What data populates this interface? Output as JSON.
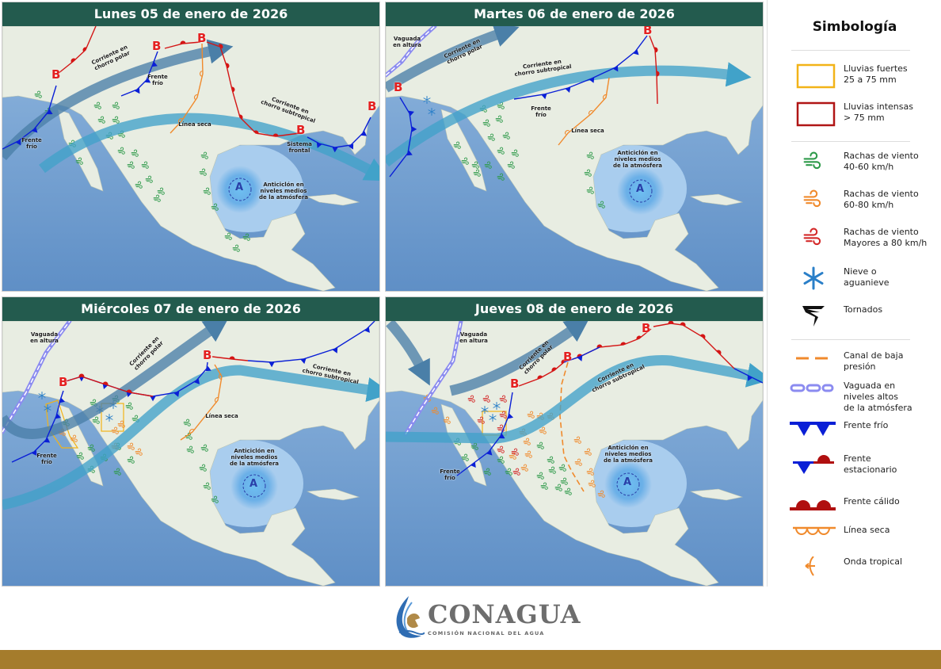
{
  "panels": [
    {
      "title": "Lunes 05 de enero de 2026",
      "labels": [
        "Corriente en\nchorro polar",
        "Frente\nfrío",
        "Frente\nfrío",
        "Línea seca",
        "Corriente en\nchorro subtropical",
        "Sistema\nfrontal",
        "Anticiclón en\nniveles medios\nde la atmósfera"
      ],
      "lows": [
        "B",
        "B",
        "B",
        "B",
        "B"
      ],
      "high": "A"
    },
    {
      "title": "Martes 06 de enero de 2026",
      "labels": [
        "Vaguada\nen altura",
        "Corriente en\nchorro polar",
        "Corriente en\nchorro subtropical",
        "Frente\nfrío",
        "Línea seca",
        "Anticiclón en\nniveles medios\nde la atmósfera"
      ],
      "lows": [
        "B",
        "B"
      ],
      "high": "A"
    },
    {
      "title": "Miércoles 07 de enero de 2026",
      "labels": [
        "Vaguada\nen altura",
        "Corriente en\nchorro polar",
        "Corriente en\nchorro subtropical",
        "Línea seca",
        "Frente\nfrío",
        "Anticiclón en\nniveles medios\nde la atmósfera"
      ],
      "lows": [
        "B",
        "B"
      ],
      "high": "A"
    },
    {
      "title": "Jueves 08 de enero de 2026",
      "labels": [
        "Vaguada\nen altura",
        "Corriente en\nchorro polar",
        "Corriente en\nchorro subtropical",
        "Frente\nfrío",
        "Anticiclón en\nniveles medios\nde la atmósfera"
      ],
      "lows": [
        "B",
        "B",
        "B"
      ],
      "high": "A"
    }
  ],
  "legend": {
    "title": "Simbología",
    "items": [
      {
        "icon": "rain-heavy-box-icon",
        "text": "Lluvias fuertes\n25 a 75 mm",
        "color": "#f2b318"
      },
      {
        "icon": "rain-intense-box-icon",
        "text": "Lluvias intensas\n> 75 mm",
        "color": "#b01515"
      },
      {
        "icon": "wind-gust-icon",
        "text": "Rachas de viento\n40-60 km/h",
        "color": "#2e9a4a"
      },
      {
        "icon": "wind-gust-icon",
        "text": "Rachas de viento\n60-80 km/h",
        "color": "#f08a2c"
      },
      {
        "icon": "wind-gust-icon",
        "text": "Rachas de viento\nMayores a 80 km/h",
        "color": "#d42a2a"
      },
      {
        "icon": "snowflake-icon",
        "text": "Nieve o\naguanieve",
        "color": "#2a7fc8"
      },
      {
        "icon": "tornado-icon",
        "text": "Tornados",
        "color": "#111111"
      },
      {
        "icon": "low-pressure-trough-icon",
        "text": "Canal de baja\npresión",
        "color": "#f08a2c"
      },
      {
        "icon": "upper-trough-icon",
        "text": "Vaguada en\nniveles altos\nde la atmósfera",
        "color": "#8b8bf0"
      },
      {
        "icon": "cold-front-icon",
        "text": "Frente frío",
        "color": "#0a1fd6"
      },
      {
        "icon": "stationary-front-icon",
        "text": "Frente\nestacionario",
        "color": "#0a1fd6"
      },
      {
        "icon": "warm-front-icon",
        "text": "Frente cálido",
        "color": "#b00f0f"
      },
      {
        "icon": "dry-line-icon",
        "text": "Línea seca",
        "color": "#f08a2c"
      },
      {
        "icon": "tropical-wave-icon",
        "text": "Onda tropical",
        "color": "#f08a2c"
      }
    ]
  },
  "footer": {
    "brand": "CONAGUA",
    "subtitle": "COMISIÓN NACIONAL DEL AGUA",
    "bar_color": "#a57c2c",
    "header_color": "#235b4e"
  }
}
